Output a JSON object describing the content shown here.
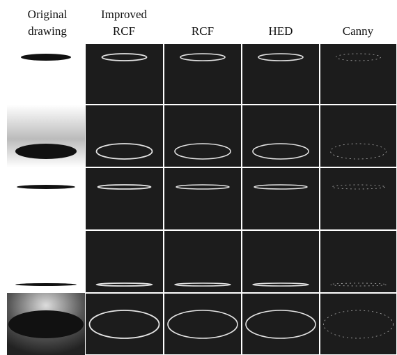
{
  "columns": [
    "Original drawing",
    "Improved RCF",
    "RCF",
    "HED",
    "Canny"
  ]
}
